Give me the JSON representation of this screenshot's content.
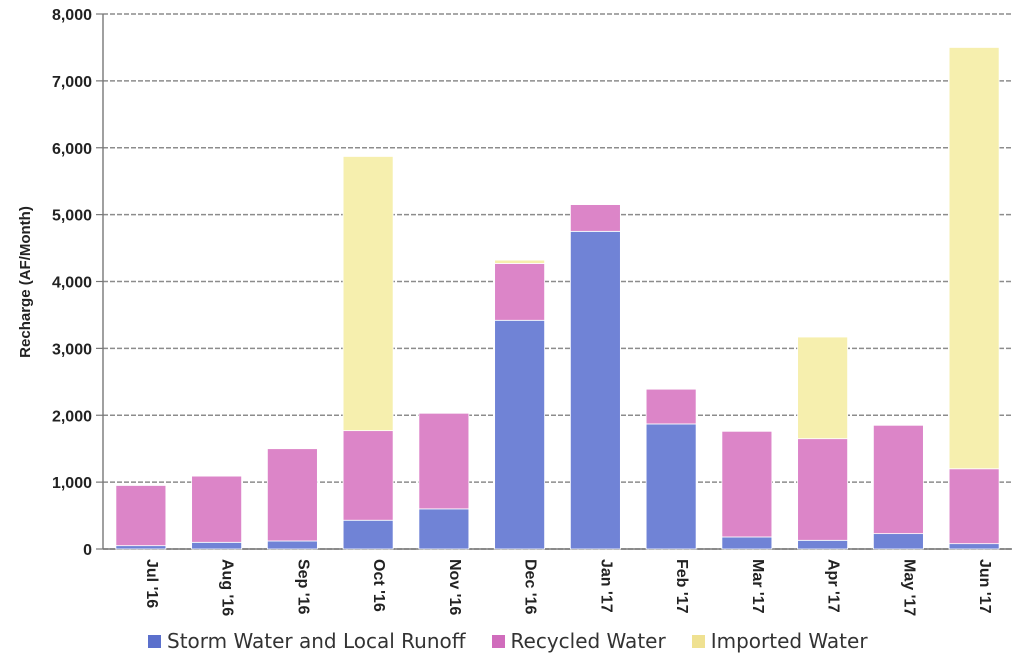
{
  "chart_data": {
    "type": "bar",
    "stacked": true,
    "title": "",
    "xlabel": "",
    "ylabel": "Recharge (AF/Month)",
    "ylim": [
      0,
      8000
    ],
    "yticks": [
      0,
      1000,
      2000,
      3000,
      4000,
      5000,
      6000,
      7000,
      8000
    ],
    "ytick_labels": [
      "0",
      "1,000",
      "2,000",
      "3,000",
      "4,000",
      "5,000",
      "6,000",
      "7,000",
      "8,000"
    ],
    "grid": true,
    "legend_position": "bottom",
    "categories": [
      "Jul '16",
      "Aug '16",
      "Sep '16",
      "Oct '16",
      "Nov '16",
      "Dec '16",
      "Jan '17",
      "Feb '17",
      "Mar '17",
      "Apr '17",
      "May '17",
      "Jun '17"
    ],
    "series": [
      {
        "name": "Storm Water and Local Runoff",
        "color": "#7083d6",
        "values": [
          50,
          100,
          120,
          430,
          600,
          3420,
          4750,
          1870,
          180,
          130,
          230,
          80
        ]
      },
      {
        "name": "Recycled Water",
        "color": "#dc85c8",
        "values": [
          900,
          990,
          1380,
          1340,
          1430,
          850,
          400,
          520,
          1580,
          1520,
          1620,
          1120
        ]
      },
      {
        "name": "Imported Water",
        "color": "#f6efae",
        "values": [
          0,
          0,
          0,
          4100,
          0,
          50,
          0,
          0,
          0,
          1520,
          0,
          6300
        ]
      }
    ]
  }
}
